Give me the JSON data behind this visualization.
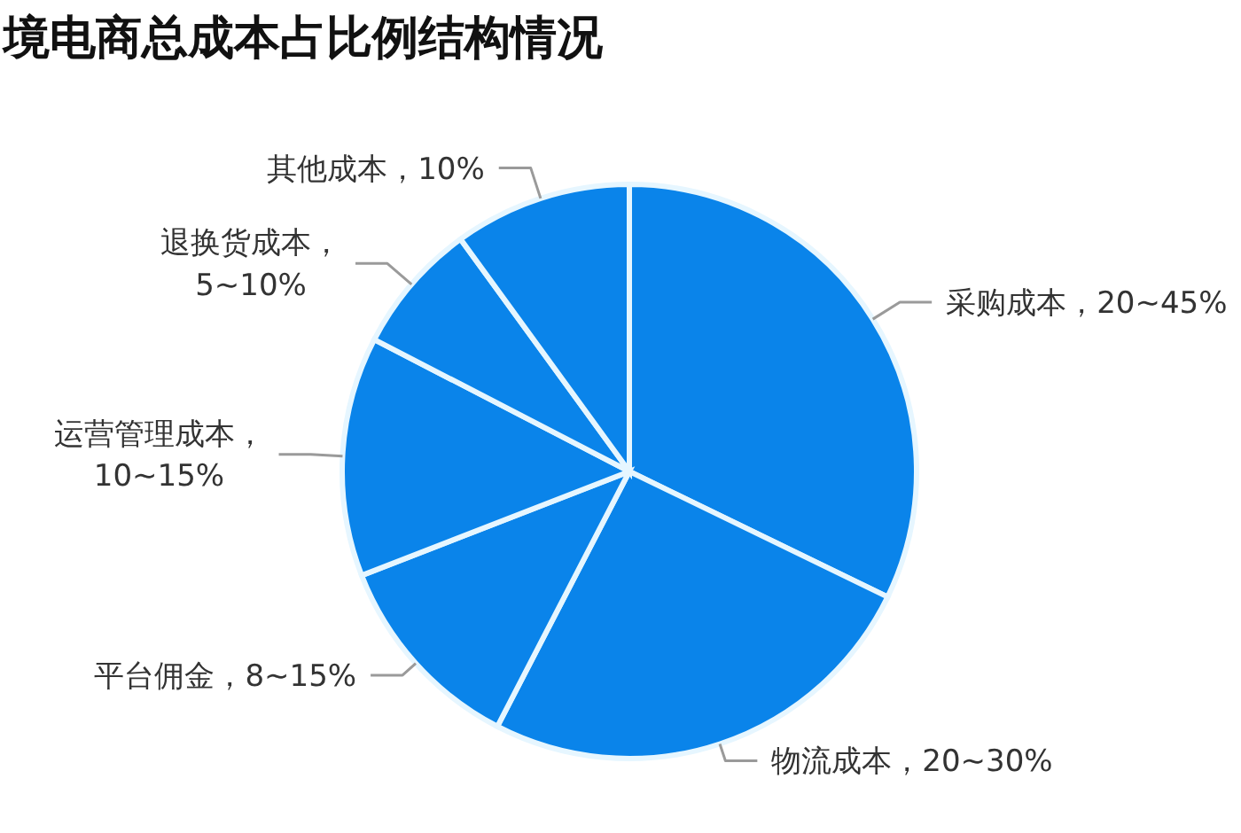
{
  "chart_data": {
    "type": "pie",
    "title": "境电商总成本占比例结构情况",
    "categories": [
      "采购成本，20~45%",
      "物流成本，20~30%",
      "平台佣金，8~15%",
      "运营管理成本，10~15%",
      "退换货成本，5~10%",
      "其他成本，10%"
    ],
    "values": [
      32.2,
      25.4,
      11.5,
      13.5,
      7.4,
      10
    ],
    "colors": [
      "#0a84ea",
      "#0a84ea",
      "#0a84ea",
      "#0a84ea",
      "#0a84ea",
      "#0a84ea"
    ]
  }
}
